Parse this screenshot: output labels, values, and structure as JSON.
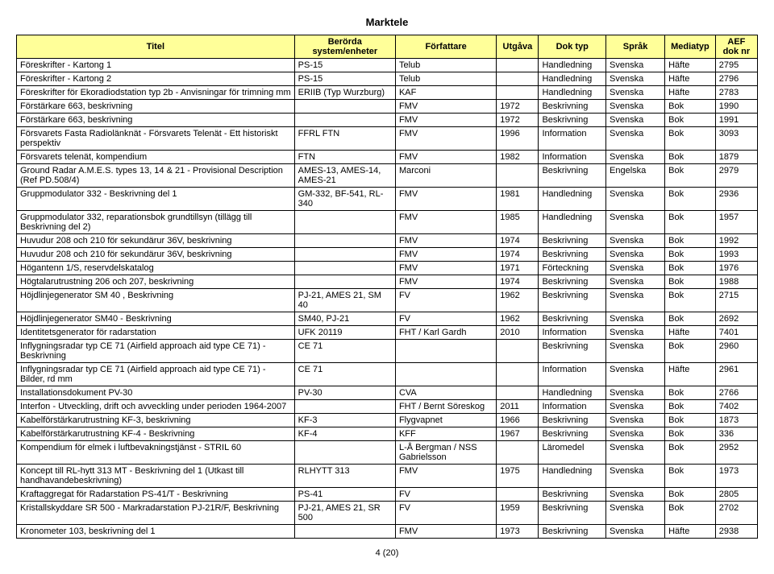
{
  "title": "Marktele",
  "columns": [
    "Titel",
    "Berörda system/enheter",
    "Författare",
    "Utgåva",
    "Dok typ",
    "Språk",
    "Mediatyp",
    "AEF dok nr"
  ],
  "rows": [
    [
      "Föreskrifter - Kartong 1",
      "PS-15",
      "Telub",
      "",
      "Handledning",
      "Svenska",
      "Häfte",
      "2795"
    ],
    [
      "Föreskrifter - Kartong 2",
      "PS-15",
      "Telub",
      "",
      "Handledning",
      "Svenska",
      "Häfte",
      "2796"
    ],
    [
      "Föreskrifter för Ekoradiodstation typ 2b - Anvisningar för trimning mm",
      "ERIIB (Typ Wurzburg)",
      "KAF",
      "",
      "Handledning",
      "Svenska",
      "Häfte",
      "2783"
    ],
    [
      "Förstärkare 663, beskrivning",
      "",
      "FMV",
      "1972",
      "Beskrivning",
      "Svenska",
      "Bok",
      "1990"
    ],
    [
      "Förstärkare 663, beskrivning",
      "",
      "FMV",
      "1972",
      "Beskrivning",
      "Svenska",
      "Bok",
      "1991"
    ],
    [
      "Försvarets Fasta Radiolänknät - Försvarets Telenät - Ett historiskt perspektiv",
      "FFRL FTN",
      "FMV",
      "1996",
      "Information",
      "Svenska",
      "Bok",
      "3093"
    ],
    [
      "Försvarets telenät, kompendium",
      "FTN",
      "FMV",
      "1982",
      "Information",
      "Svenska",
      "Bok",
      "1879"
    ],
    [
      "Ground Radar A.M.E.S. types 13, 14 & 21 - Provisional Description (Ref PD.508/4)",
      "AMES-13, AMES-14, AMES-21",
      "Marconi",
      "",
      "Beskrivning",
      "Engelska",
      "Bok",
      "2979"
    ],
    [
      "Gruppmodulator 332 - Beskrivning del 1",
      "GM-332, BF-541, RL-340",
      "FMV",
      "1981",
      "Handledning",
      "Svenska",
      "Bok",
      "2936"
    ],
    [
      "Gruppmodulator 332, reparationsbok grundtillsyn (tillägg till Beskrivning del 2)",
      "",
      "FMV",
      "1985",
      "Handledning",
      "Svenska",
      "Bok",
      "1957"
    ],
    [
      "Huvudur 208 och 210 för sekundärur 36V, beskrivning",
      "",
      "FMV",
      "1974",
      "Beskrivning",
      "Svenska",
      "Bok",
      "1992"
    ],
    [
      "Huvudur 208 och 210 för sekundärur 36V, beskrivning",
      "",
      "FMV",
      "1974",
      "Beskrivning",
      "Svenska",
      "Bok",
      "1993"
    ],
    [
      "Högantenn 1/S, reservdelskatalog",
      "",
      "FMV",
      "1971",
      "Förteckning",
      "Svenska",
      "Bok",
      "1976"
    ],
    [
      "Högtalarutrustning 206 och 207, beskrivning",
      "",
      "FMV",
      "1974",
      "Beskrivning",
      "Svenska",
      "Bok",
      "1988"
    ],
    [
      "Höjdlinjegenerator SM 40 , Beskrivning",
      "PJ-21, AMES 21, SM 40",
      "FV",
      "1962",
      "Beskrivning",
      "Svenska",
      "Bok",
      "2715"
    ],
    [
      "Höjdlinjegenerator SM40 - Beskrivning",
      "SM40, PJ-21",
      "FV",
      "1962",
      "Beskrivning",
      "Svenska",
      "Bok",
      "2692"
    ],
    [
      "Identitetsgenerator för radarstation",
      "UFK 20119",
      "FHT / Karl Gardh",
      "2010",
      "Information",
      "Svenska",
      "Häfte",
      "7401"
    ],
    [
      "Inflygningsradar typ CE 71 (Airfield approach aid type CE 71) - Beskrivning",
      "CE 71",
      "",
      "",
      "Beskrivning",
      "Svenska",
      "Bok",
      "2960"
    ],
    [
      "Inflygningsradar typ CE 71 (Airfield approach aid type CE 71) - Bilder, rd mm",
      "CE 71",
      "",
      "",
      "Information",
      "Svenska",
      "Häfte",
      "2961"
    ],
    [
      "Installationsdokument PV-30",
      "PV-30",
      "CVA",
      "",
      "Handledning",
      "Svenska",
      "Bok",
      "2766"
    ],
    [
      "Interfon - Utveckling, drift och avveckling under perioden 1964-2007",
      "",
      "FHT / Bernt Söreskog",
      "2011",
      "Information",
      "Svenska",
      "Bok",
      "7402"
    ],
    [
      "Kabelförstärkarutrustning KF-3, beskrivning",
      "KF-3",
      "Flygvapnet",
      "1966",
      "Beskrivning",
      "Svenska",
      "Bok",
      "1873"
    ],
    [
      "Kabelförstärkarutrustning KF-4 - Beskrivning",
      "KF-4",
      "KFF",
      "1967",
      "Beskrivning",
      "Svenska",
      "Bok",
      "336"
    ],
    [
      "Kompendium för elmek i luftbevakningstjänst - STRIL 60",
      "",
      "L-Å Bergman / NSS Gabrielsson",
      "",
      "Läromedel",
      "Svenska",
      "Bok",
      "2952"
    ],
    [
      "Koncept till RL-hytt 313 MT - Beskrivning del 1 (Utkast till handhavandebeskrivning)",
      "RLHYTT 313",
      "FMV",
      "1975",
      "Handledning",
      "Svenska",
      "Bok",
      "1973"
    ],
    [
      "Kraftaggregat för Radarstation PS-41/T - Beskrivning",
      "PS-41",
      "FV",
      "",
      "Beskrivning",
      "Svenska",
      "Bok",
      "2805"
    ],
    [
      "Kristallskyddare SR 500 - Markradarstation PJ-21R/F, Beskrivning",
      "PJ-21, AMES 21, SR 500",
      "FV",
      "1959",
      "Beskrivning",
      "Svenska",
      "Bok",
      "2702"
    ],
    [
      "Kronometer 103, beskrivning del 1",
      "",
      "FMV",
      "1973",
      "Beskrivning",
      "Svenska",
      "Häfte",
      "2938"
    ]
  ],
  "footer": "4 (20)",
  "colors": {
    "header_bg": "#ffff99",
    "border": "#000000",
    "text": "#000000",
    "background": "#ffffff"
  }
}
